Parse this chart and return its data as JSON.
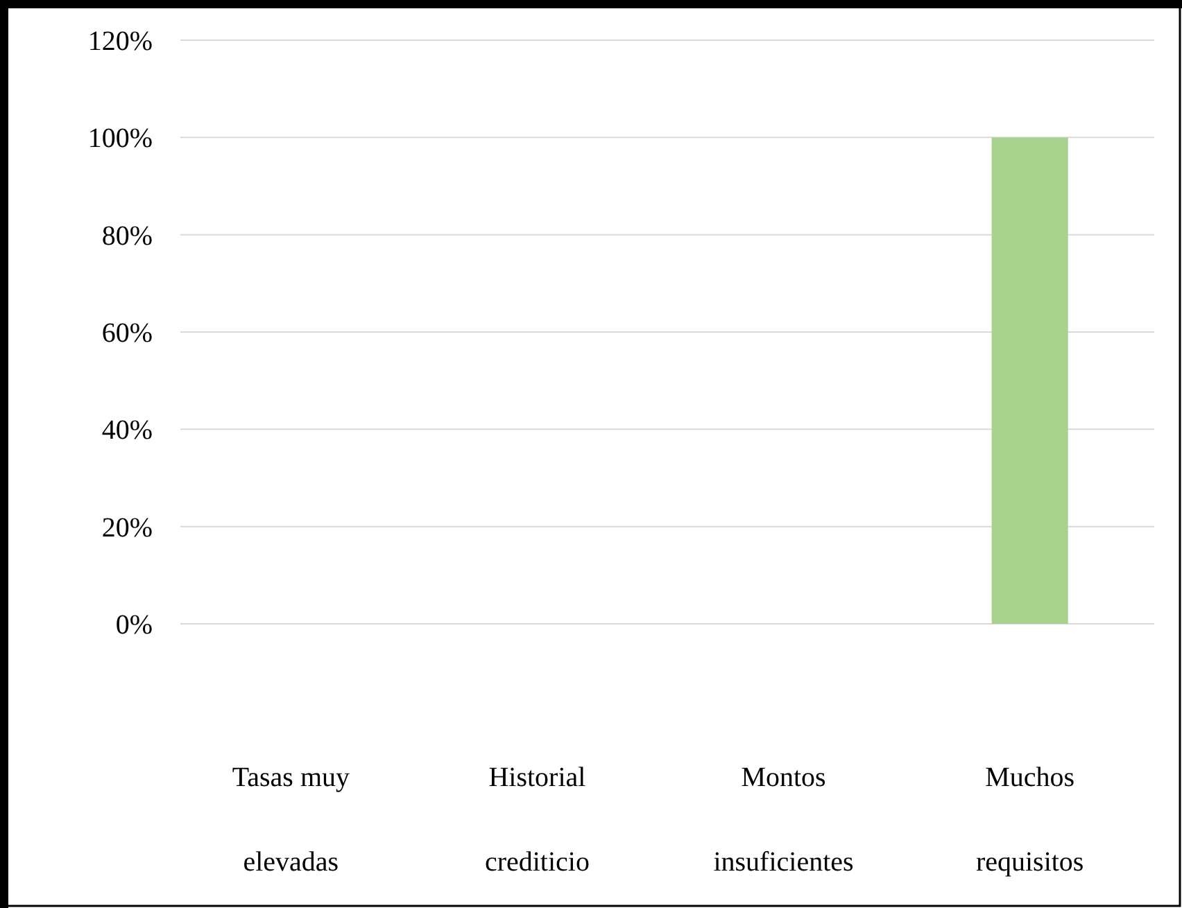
{
  "chart_data": {
    "type": "bar",
    "categories": [
      "Tasas muy elevadas",
      "Historial crediticio",
      "Montos insuficientes",
      "Muchos requisitos"
    ],
    "values": [
      0,
      0,
      0,
      100
    ],
    "color": "#a9d18e",
    "ylim": [
      0,
      120
    ],
    "yticks": [
      {
        "value": 0,
        "label": "0%"
      },
      {
        "value": 20,
        "label": "20%"
      },
      {
        "value": 40,
        "label": "40%"
      },
      {
        "value": 60,
        "label": "60%"
      },
      {
        "value": 80,
        "label": "80%"
      },
      {
        "value": 100,
        "label": "100%"
      },
      {
        "value": 120,
        "label": "120%"
      }
    ],
    "grid": "y"
  }
}
